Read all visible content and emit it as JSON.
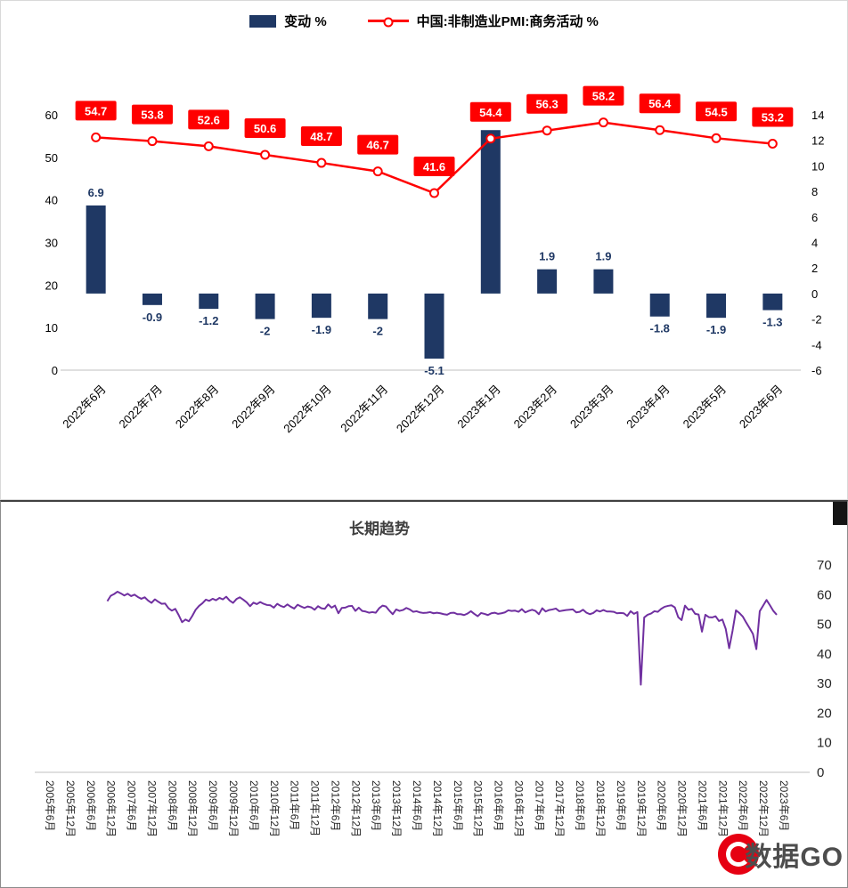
{
  "watermark": {
    "text": "数据GO",
    "logo_color": "#E60012"
  },
  "chart_data": [
    {
      "type": "bar",
      "subtype": "bar+line combo",
      "categories": [
        "2022年6月",
        "2022年7月",
        "2022年8月",
        "2022年9月",
        "2022年10月",
        "2022年11月",
        "2022年12月",
        "2023年1月",
        "2023年2月",
        "2023年3月",
        "2023年4月",
        "2023年5月",
        "2023年6月"
      ],
      "series": [
        {
          "name": "变动 %",
          "type": "bar",
          "axis": "right",
          "color": "#1F3864",
          "values": [
            6.9,
            -0.9,
            -1.2,
            -2,
            -1.9,
            -2,
            -5.1,
            12.8,
            1.9,
            1.9,
            -1.8,
            -1.9,
            -1.3
          ],
          "labels": [
            "6.9",
            "-0.9",
            "-1.2",
            "-2",
            "-1.9",
            "-2",
            "-5.1",
            "",
            "1.9",
            "1.9",
            "-1.8",
            "-1.9",
            "-1.3"
          ]
        },
        {
          "name": "中国:非制造业PMI:商务活动 %",
          "type": "line",
          "axis": "left",
          "color": "#FF0000",
          "marker": "open-circle",
          "values": [
            54.7,
            53.8,
            52.6,
            50.6,
            48.7,
            46.7,
            41.6,
            54.4,
            56.3,
            58.2,
            56.4,
            54.5,
            53.2
          ],
          "labels": [
            "54.7",
            "53.8",
            "52.6",
            "50.6",
            "48.7",
            "46.7",
            "41.6",
            "54.4",
            "56.3",
            "58.2",
            "56.4",
            "54.5",
            "53.2"
          ]
        }
      ],
      "left_axis": {
        "min": 0,
        "max": 60,
        "ticks": [
          0,
          10,
          20,
          30,
          40,
          50,
          60
        ]
      },
      "right_axis": {
        "min": -6,
        "max": 14,
        "ticks": [
          -6,
          -4,
          -2,
          0,
          2,
          4,
          6,
          8,
          10,
          12,
          14
        ]
      },
      "grid": false,
      "legend_position": "top"
    },
    {
      "type": "line",
      "title": "长期趋势",
      "series_name": "中国:非制造业PMI:商务活动 %",
      "color": "#7030A0",
      "grid": false,
      "start_label": "2007年1月",
      "start_month_offset": 19,
      "x_ticks": [
        "2005年6月",
        "2005年12月",
        "2006年6月",
        "2006年12月",
        "2007年6月",
        "2007年12月",
        "2008年6月",
        "2008年12月",
        "2009年6月",
        "2009年12月",
        "2010年6月",
        "2010年12月",
        "2011年6月",
        "2011年12月",
        "2012年6月",
        "2012年12月",
        "2013年6月",
        "2013年12月",
        "2014年6月",
        "2014年12月",
        "2015年6月",
        "2015年12月",
        "2016年6月",
        "2016年12月",
        "2017年6月",
        "2017年12月",
        "2018年6月",
        "2018年12月",
        "2019年6月",
        "2019年12月",
        "2020年6月",
        "2020年12月",
        "2021年6月",
        "2021年12月",
        "2022年6月",
        "2022年12月",
        "2023年6月"
      ],
      "right_axis": {
        "min": 0,
        "max": 70,
        "ticks": [
          0,
          10,
          20,
          30,
          40,
          50,
          60,
          70
        ]
      },
      "values": [
        57.8,
        59.6,
        60.2,
        61.0,
        60.4,
        59.7,
        60.3,
        59.5,
        60.0,
        59.2,
        58.6,
        59.1,
        58.0,
        57.2,
        58.4,
        57.6,
        56.9,
        57.0,
        55.4,
        54.6,
        55.2,
        53.1,
        50.7,
        51.6,
        51.0,
        52.8,
        54.9,
        56.2,
        57.1,
        58.3,
        57.9,
        58.6,
        58.1,
        58.9,
        58.4,
        59.3,
        58.0,
        57.2,
        58.5,
        59.1,
        58.3,
        57.4,
        56.1,
        57.3,
        56.8,
        57.5,
        56.9,
        56.5,
        56.4,
        55.6,
        56.9,
        56.2,
        55.8,
        56.7,
        55.9,
        55.3,
        56.6,
        56.0,
        55.5,
        56.0,
        55.7,
        54.9,
        56.1,
        55.4,
        55.2,
        56.7,
        55.6,
        56.3,
        53.7,
        55.5,
        55.6,
        56.1,
        56.2,
        54.5,
        55.6,
        54.5,
        54.3,
        53.9,
        54.1,
        53.9,
        55.4,
        56.3,
        56.0,
        54.6,
        53.4,
        55.0,
        54.5,
        54.8,
        55.5,
        55.0,
        54.2,
        54.4,
        54.0,
        53.8,
        53.9,
        54.1,
        53.7,
        53.9,
        53.7,
        53.4,
        53.2,
        53.8,
        53.9,
        53.4,
        53.4,
        53.1,
        53.6,
        54.4,
        53.5,
        52.7,
        53.8,
        53.5,
        53.1,
        53.7,
        53.9,
        53.5,
        53.7,
        54.0,
        54.7,
        54.5,
        54.6,
        54.2,
        55.1,
        54.0,
        54.5,
        54.9,
        54.5,
        53.4,
        55.4,
        54.3,
        54.8,
        55.0,
        55.3,
        54.4,
        54.6,
        54.8,
        54.9,
        55.0,
        54.0,
        54.2,
        54.9,
        53.9,
        53.4,
        53.8,
        54.7,
        54.3,
        54.8,
        54.3,
        54.3,
        54.2,
        53.7,
        53.8,
        53.7,
        52.8,
        54.4,
        53.5,
        54.1,
        29.6,
        52.3,
        53.2,
        53.6,
        54.4,
        54.2,
        55.2,
        55.9,
        56.2,
        56.4,
        55.7,
        52.4,
        51.4,
        56.3,
        54.9,
        55.2,
        53.5,
        53.3,
        47.5,
        53.2,
        52.4,
        52.3,
        52.7,
        51.1,
        51.6,
        48.4,
        41.9,
        47.8,
        54.7,
        53.8,
        52.6,
        50.6,
        48.7,
        46.7,
        41.6,
        54.4,
        56.3,
        58.2,
        56.4,
        54.5,
        53.2
      ]
    }
  ]
}
